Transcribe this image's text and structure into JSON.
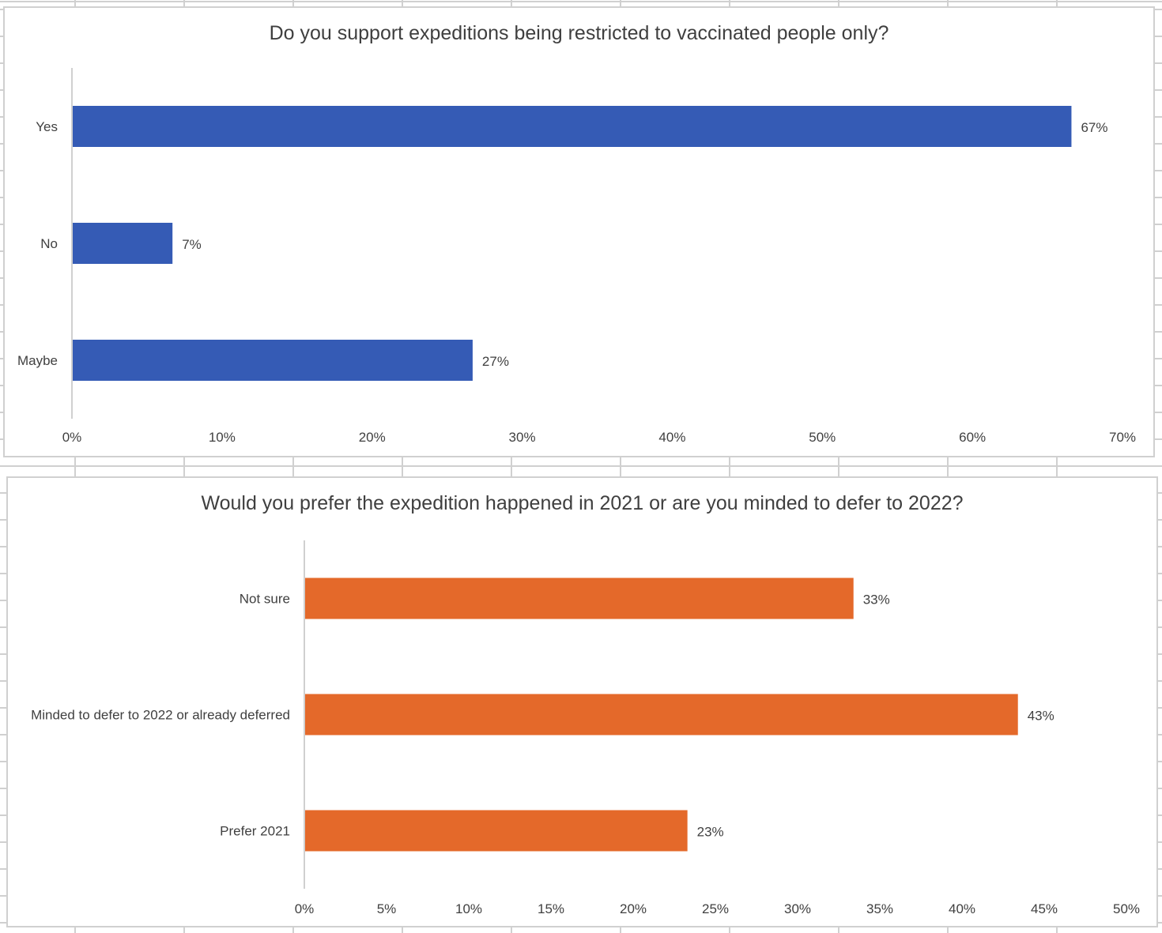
{
  "chart_data": [
    {
      "type": "bar",
      "orientation": "horizontal",
      "title": "Do you support expeditions being restricted to vaccinated people only?",
      "categories": [
        "Yes",
        "No",
        "Maybe"
      ],
      "values": [
        66.6,
        6.7,
        26.7
      ],
      "data_labels": [
        "67%",
        "7%",
        "27%"
      ],
      "xlabel": "",
      "ylabel": "",
      "xlim": [
        0,
        70
      ],
      "x_ticks": [
        0,
        10,
        20,
        30,
        40,
        50,
        60,
        70
      ],
      "x_tick_labels": [
        "0%",
        "10%",
        "20%",
        "30%",
        "40%",
        "50%",
        "60%",
        "70%"
      ],
      "grid": false,
      "legend": "none",
      "color": "#355BB5"
    },
    {
      "type": "bar",
      "orientation": "horizontal",
      "title": "Would you prefer the expedition happened in 2021 or are you minded to defer to 2022?",
      "categories": [
        "Not sure",
        "Minded to defer to 2022 or already deferred",
        "Prefer 2021"
      ],
      "values": [
        33.4,
        43.4,
        23.3
      ],
      "data_labels": [
        "33%",
        "43%",
        "23%"
      ],
      "xlabel": "",
      "ylabel": "",
      "xlim": [
        0,
        50
      ],
      "x_ticks": [
        0,
        5,
        10,
        15,
        20,
        25,
        30,
        35,
        40,
        45,
        50
      ],
      "x_tick_labels": [
        "0%",
        "5%",
        "10%",
        "15%",
        "20%",
        "25%",
        "30%",
        "35%",
        "40%",
        "45%",
        "50%"
      ],
      "grid": false,
      "legend": "none",
      "color": "#E4692A"
    }
  ]
}
